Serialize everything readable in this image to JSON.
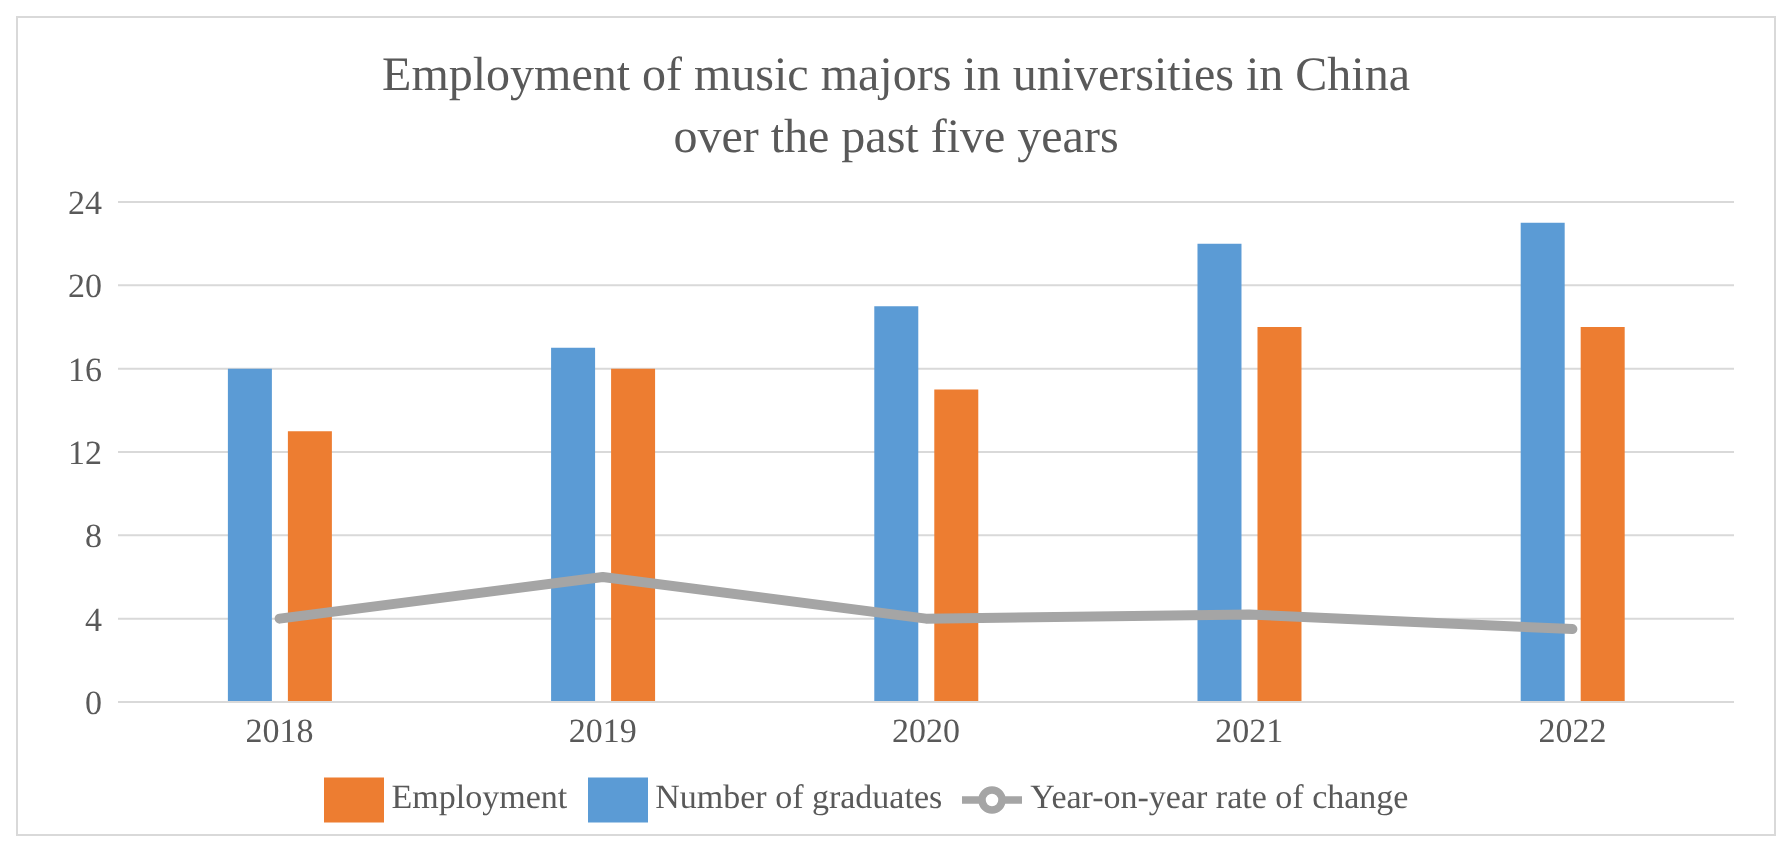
{
  "chart_data": {
    "type": "bar",
    "title": "Employment of music majors in universities in China over the past  five years",
    "categories": [
      "2018",
      "2019",
      "2020",
      "2021",
      "2022"
    ],
    "series": [
      {
        "name": "Number of graduates",
        "color": "#5b9bd5",
        "values": [
          16,
          17,
          19,
          22,
          23
        ]
      },
      {
        "name": "Employment",
        "color": "#ed7d31",
        "values": [
          13,
          16,
          15,
          18,
          18
        ]
      },
      {
        "name": "Year-on-year rate of change",
        "type": "line",
        "color": "#a5a5a5",
        "values": [
          4,
          6,
          4,
          4.2,
          3.5
        ],
        "marker": "none"
      }
    ],
    "ylim": [
      0,
      24
    ],
    "yticks": [
      0,
      4,
      8,
      12,
      16,
      20,
      24
    ],
    "grid": "y",
    "legend": "bottom"
  }
}
